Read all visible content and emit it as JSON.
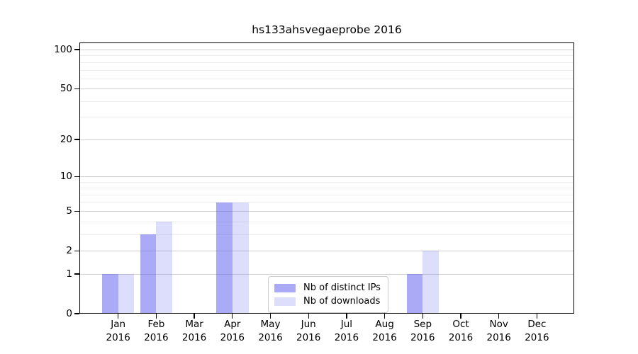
{
  "chart_data": {
    "type": "bar",
    "title": "hs133ahsvegaeprobe 2016",
    "categories": [
      "Jan",
      "Feb",
      "Mar",
      "Apr",
      "May",
      "Jun",
      "Jul",
      "Aug",
      "Sep",
      "Oct",
      "Nov",
      "Dec"
    ],
    "category_year": "2016",
    "series": [
      {
        "name": "Nb of distinct IPs",
        "color": "rgba(86,86,240,0.5)",
        "solid_color": "#abaaf7",
        "values": [
          1,
          3,
          0,
          6,
          0,
          0,
          0,
          0,
          1,
          0,
          0,
          0
        ]
      },
      {
        "name": "Nb of downloads",
        "color": "rgba(86,86,240,0.2)",
        "solid_color": "#dcdcf8",
        "values": [
          1,
          4,
          0,
          6,
          0,
          0,
          0,
          0,
          2,
          0,
          0,
          0
        ]
      }
    ],
    "xlabel": "",
    "ylabel": "",
    "yscale": "log1p",
    "ylim": [
      0,
      100
    ],
    "yticks": [
      0,
      1,
      2,
      5,
      10,
      20,
      50,
      100
    ],
    "minor_yticks": [
      3,
      4,
      6,
      7,
      8,
      9,
      30,
      40,
      60,
      70,
      80,
      90
    ],
    "grid": {
      "major_color": "#cfcfcf",
      "minor_color": "#ededed",
      "enabled": true
    },
    "legend": {
      "position": "lower center"
    },
    "axis_color": "#000000",
    "text_color": "#000000"
  }
}
